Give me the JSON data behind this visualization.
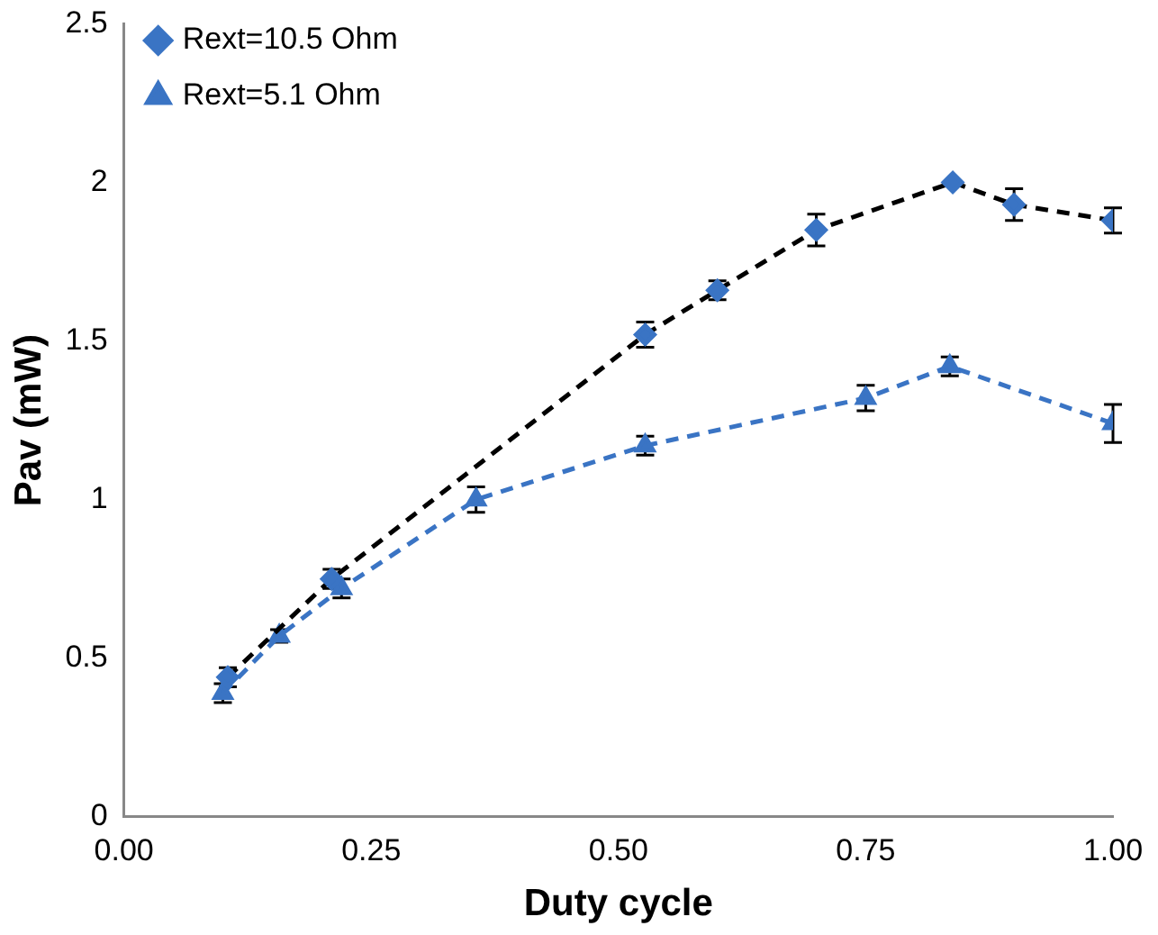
{
  "chart_data": {
    "type": "line",
    "xlabel": "Duty cycle",
    "ylabel": "Pav (mW)",
    "xlim": [
      0,
      1
    ],
    "xticks": [
      {
        "value": 0,
        "label": "0.00"
      },
      {
        "value": 0.25,
        "label": "0.25"
      },
      {
        "value": 0.5,
        "label": "0.50"
      },
      {
        "value": 0.75,
        "label": "0.75"
      },
      {
        "value": 1,
        "label": "1.00"
      }
    ],
    "ylim": [
      0,
      2.5
    ],
    "yticks": [
      0,
      0.5,
      1,
      1.5,
      2,
      2.5
    ],
    "grid": false,
    "legend": "top left",
    "line_style": "dashed",
    "series": [
      {
        "name": "Rext=10.5 Ohm",
        "color": "#000000",
        "marker": "diamond",
        "colors": [
          "#3a74c4",
          "#3a74c4",
          "#3a74c4",
          "#3a74c4",
          "#3a74c4",
          "#3a74c4",
          "#3a74c4",
          "#3a74c4"
        ],
        "x": [
          0.105,
          0.21,
          0.527,
          0.6,
          0.7,
          0.838,
          0.9,
          1.0
        ],
        "values": [
          0.44,
          0.75,
          1.52,
          1.66,
          1.85,
          2.0,
          1.93,
          1.88
        ],
        "errors": [
          0.03,
          0.03,
          0.04,
          0.03,
          0.05,
          null,
          0.05,
          0.04
        ]
      },
      {
        "name": "Rext=5.1 Ohm",
        "color": "#3a74c4",
        "marker": "triangle",
        "x": [
          0.1,
          0.157,
          0.22,
          0.356,
          0.527,
          0.75,
          0.835,
          1.0
        ],
        "values": [
          0.39,
          0.57,
          0.72,
          1.0,
          1.17,
          1.32,
          1.42,
          1.24
        ],
        "errors": [
          0.03,
          0.02,
          0.03,
          0.04,
          0.03,
          0.04,
          0.03,
          0.06
        ]
      }
    ]
  }
}
